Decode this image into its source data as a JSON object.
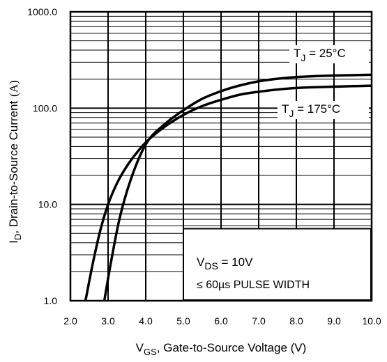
{
  "chart_data": {
    "type": "line",
    "title": "",
    "xlabel": {
      "sym": "V",
      "sub": "GS",
      "text": ", Gate-to-Source Voltage (V)"
    },
    "ylabel": {
      "sym": "I",
      "sub": "D",
      "text": ", Drain-to-Source Current",
      "unit": "(A)"
    },
    "xlim": [
      2.0,
      10.0
    ],
    "ylim": [
      1.0,
      1000.0
    ],
    "yscale": "log",
    "grid": true,
    "x_ticks": [
      2.0,
      3.0,
      4.0,
      5.0,
      6.0,
      7.0,
      8.0,
      9.0,
      10.0
    ],
    "x_tick_labels": [
      "2.0",
      "3.0",
      "4.0",
      "5.0",
      "6.0",
      "7.0",
      "8.0",
      "9.0",
      "10.0"
    ],
    "y_ticks": [
      1.0,
      10.0,
      100.0,
      1000.0
    ],
    "y_tick_labels": [
      "1.0",
      "10.0",
      "100.0",
      "1000.0"
    ],
    "series": [
      {
        "label": {
          "sym": "T",
          "sub": "J",
          "text": " = 25°C"
        },
        "x": [
          2.9,
          3.05,
          3.3,
          3.6,
          4.0,
          4.5,
          5.0,
          5.5,
          6.0,
          6.5,
          7.0,
          7.5,
          8.0,
          8.5,
          9.0,
          9.5,
          10.0
        ],
        "y": [
          1.0,
          2.2,
          7.0,
          18,
          42,
          68,
          95,
          125,
          150,
          172,
          190,
          202,
          210,
          215,
          218,
          220,
          222
        ]
      },
      {
        "label": {
          "sym": "T",
          "sub": "J",
          "text": " = 175°C"
        },
        "x": [
          2.4,
          2.6,
          2.8,
          3.0,
          3.25,
          3.5,
          3.75,
          4.0,
          4.5,
          5.0,
          5.5,
          6.0,
          6.5,
          7.0,
          7.5,
          8.0,
          8.5,
          9.0,
          9.5,
          10.0
        ],
        "y": [
          1.0,
          2.5,
          5.5,
          10,
          17,
          25,
          34,
          44,
          64,
          85,
          105,
          122,
          138,
          148,
          156,
          162,
          165,
          167,
          169,
          171
        ]
      }
    ],
    "annotation": {
      "line1": {
        "sym": "V",
        "sub": "DS",
        "text": " = 10V"
      },
      "line2": "≤ 60µs PULSE WIDTH"
    }
  }
}
